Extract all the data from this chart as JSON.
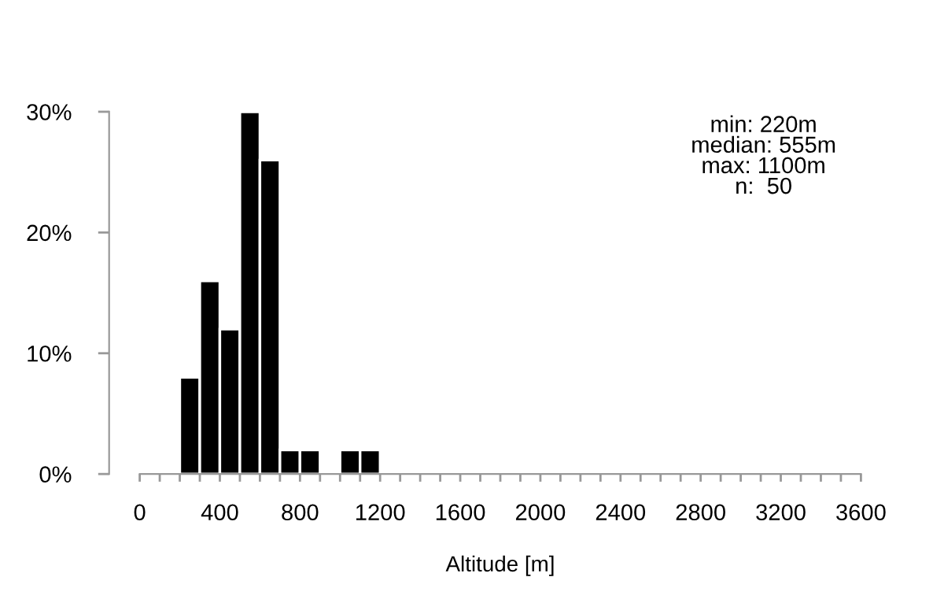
{
  "chart_data": {
    "type": "histogram",
    "xlabel": "Altitude [m]",
    "bins": [
      200,
      300,
      400,
      500,
      600,
      700,
      800,
      900,
      1000,
      1100,
      1200
    ],
    "values": [
      8,
      16,
      12,
      30,
      26,
      2,
      2,
      0,
      2,
      2
    ],
    "color": "#000000",
    "xlim": [
      0,
      3600
    ],
    "ylim": [
      0,
      30
    ],
    "xticks": [
      0,
      {
        "value": 100,
        "label": null
      },
      {
        "value": 200,
        "label": null
      },
      {
        "value": 300,
        "label": null
      },
      400,
      {
        "value": 500,
        "label": null
      },
      {
        "value": 600,
        "label": null
      },
      {
        "value": 700,
        "label": null
      },
      800,
      {
        "value": 900,
        "label": null
      },
      {
        "value": 1000,
        "label": null
      },
      {
        "value": 1100,
        "label": null
      },
      1200,
      {
        "value": 1300,
        "label": null
      },
      {
        "value": 1400,
        "label": null
      },
      {
        "value": 1500,
        "label": null
      },
      1600,
      {
        "value": 1700,
        "label": null
      },
      {
        "value": 1800,
        "label": null
      },
      {
        "value": 1900,
        "label": null
      },
      2000,
      {
        "value": 2100,
        "label": null
      },
      {
        "value": 2200,
        "label": null
      },
      {
        "value": 2300,
        "label": null
      },
      2400,
      {
        "value": 2500,
        "label": null
      },
      {
        "value": 2600,
        "label": null
      },
      {
        "value": 2700,
        "label": null
      },
      2800,
      {
        "value": 2900,
        "label": null
      },
      {
        "value": 3000,
        "label": null
      },
      {
        "value": 3100,
        "label": null
      },
      3200,
      {
        "value": 3300,
        "label": null
      },
      {
        "value": 3400,
        "label": null
      },
      {
        "value": 3500,
        "label": null
      },
      3600
    ],
    "yticks": [
      {
        "value": 0,
        "label": "0%"
      },
      {
        "value": 10,
        "label": "10%"
      },
      {
        "value": 20,
        "label": "20%"
      },
      {
        "value": 30,
        "label": "30%"
      }
    ],
    "annotations": [
      "min: 220m\nmedian: 555m\nmax: 1100m\nn:  50"
    ],
    "grid": false
  }
}
